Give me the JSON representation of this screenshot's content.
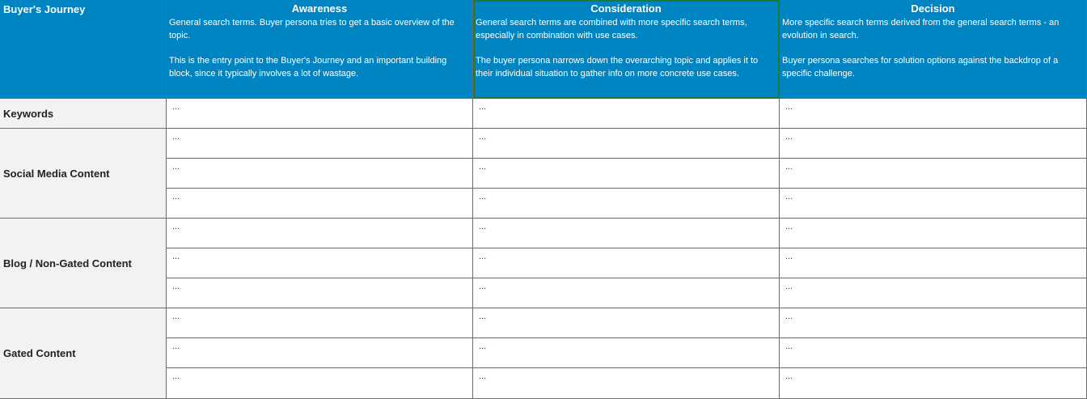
{
  "table": {
    "corner_label": "Buyer's Journey",
    "stages": [
      {
        "title": "Awareness",
        "desc": [
          "General search terms. Buyer persona tries to get a basic overview of the topic.",
          "This is the entry point to the Buyer's Journey and an important building block, since it typically involves a lot of wastage."
        ]
      },
      {
        "title": "Consideration",
        "desc": [
          "General search terms are combined with more specific search terms, especially in combination with use cases.",
          "The buyer persona narrows down the overarching topic and applies it to their individual situation to gather info on more concrete use cases."
        ]
      },
      {
        "title": "Decision",
        "desc": [
          "More specific search terms derived from the general search terms - an evolution in search.",
          "Buyer persona searches for solution options against the backdrop of a specific challenge."
        ]
      }
    ],
    "rows": [
      {
        "label": "Keywords",
        "subrows": [
          [
            "...",
            "...",
            "..."
          ]
        ]
      },
      {
        "label": "Social Media Content",
        "subrows": [
          [
            "...",
            "...",
            "..."
          ],
          [
            "...",
            "...",
            "..."
          ],
          [
            "...",
            "...",
            "..."
          ]
        ]
      },
      {
        "label": "Blog / Non-Gated Content",
        "subrows": [
          [
            "...",
            "...",
            "..."
          ],
          [
            "...",
            "...",
            "..."
          ],
          [
            "...",
            "...",
            "..."
          ]
        ]
      },
      {
        "label": "Gated Content",
        "subrows": [
          [
            "...",
            "...",
            "..."
          ],
          [
            "...",
            "...",
            "..."
          ],
          [
            "...",
            "...",
            "..."
          ]
        ]
      }
    ],
    "colors": {
      "header_bg": "#0085c2",
      "header_text": "#ffffff",
      "label_bg": "#f2f2f2",
      "selection_outline": "#1d7a3a",
      "grid_line": "#6b6b6b"
    }
  }
}
